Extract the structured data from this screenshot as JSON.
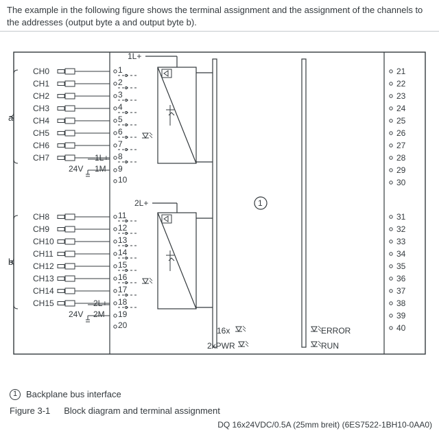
{
  "intro": "The example in the following figure shows the terminal assignment and the assignment of the channels to the addresses (output byte a and output byte b).",
  "byteLabels": {
    "a": "a",
    "b": "b"
  },
  "groupA": {
    "busLabel": "1L+",
    "channels": [
      "CH0",
      "CH1",
      "CH2",
      "CH3",
      "CH4",
      "CH5",
      "CH6",
      "CH7"
    ],
    "pins": [
      "1",
      "2",
      "3",
      "4",
      "5",
      "6",
      "7",
      "8",
      "9",
      "10"
    ],
    "supply24v": "24V",
    "supplyL": "1L+",
    "supplyM": "1M"
  },
  "groupB": {
    "busLabel": "2L+",
    "channels": [
      "CH8",
      "CH9",
      "CH10",
      "CH11",
      "CH12",
      "CH13",
      "CH14",
      "CH15"
    ],
    "pins": [
      "11",
      "12",
      "13",
      "14",
      "15",
      "16",
      "17",
      "18",
      "19",
      "20"
    ],
    "supply24v": "24V",
    "supplyL": "2L+",
    "supplyM": "2M"
  },
  "rightPins": {
    "a": [
      "21",
      "22",
      "23",
      "24",
      "25",
      "26",
      "27",
      "28",
      "29",
      "30"
    ],
    "b": [
      "31",
      "32",
      "33",
      "34",
      "35",
      "36",
      "37",
      "38",
      "39",
      "40"
    ]
  },
  "legends": {
    "sixteenX": "16x",
    "twoPwr": "2xPWR",
    "error": "ERROR",
    "run": "RUN"
  },
  "callout": {
    "symbol": "①",
    "text": "Backplane bus interface"
  },
  "figureCaption": {
    "num": "Figure 3-1",
    "text": "Block diagram and terminal assignment"
  },
  "partNumber": "DQ 16x24VDC/0.5A (25mm breit) (6ES7522-1BH10-0AA0)",
  "colors": {
    "stroke": "#33393d",
    "accent": "#2a6fb3",
    "bg": "#ffffff"
  }
}
